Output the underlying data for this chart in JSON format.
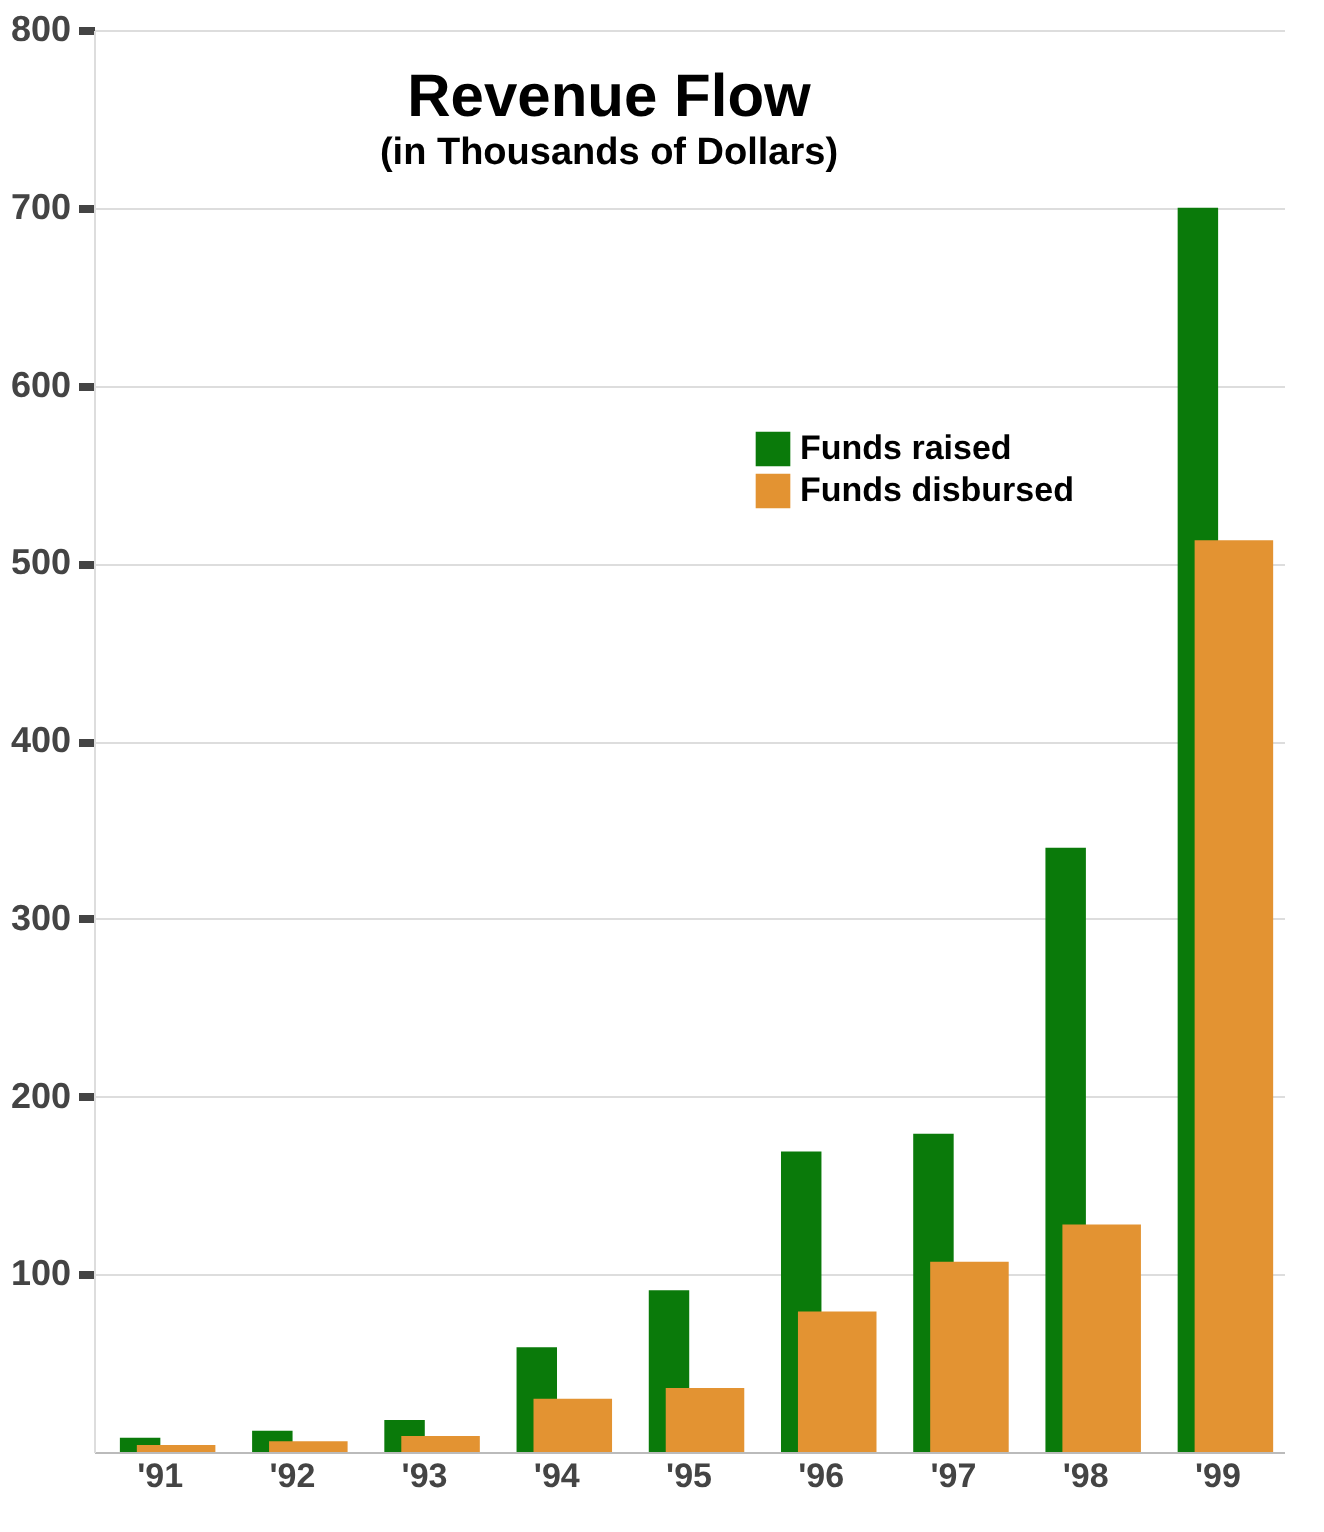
{
  "chart_data": {
    "type": "bar",
    "title": "Revenue Flow",
    "subtitle": "(in Thousands of Dollars)",
    "categories": [
      "'91",
      "'92",
      "'93",
      "'94",
      "'95",
      "'96",
      "'97",
      "'98",
      "'99"
    ],
    "series": [
      {
        "name": "Funds raised",
        "color": "#0a7a0a",
        "values": [
          8,
          12,
          18,
          59,
          91,
          169,
          179,
          340,
          700
        ]
      },
      {
        "name": "Funds disbursed",
        "color": "#e39332",
        "values": [
          4,
          6,
          9,
          30,
          36,
          79,
          107,
          128,
          513
        ]
      }
    ],
    "ylim": [
      0,
      800
    ],
    "yticks": [
      100,
      200,
      300,
      400,
      500,
      600,
      700,
      800
    ],
    "grid": "y",
    "legend": "top right"
  }
}
